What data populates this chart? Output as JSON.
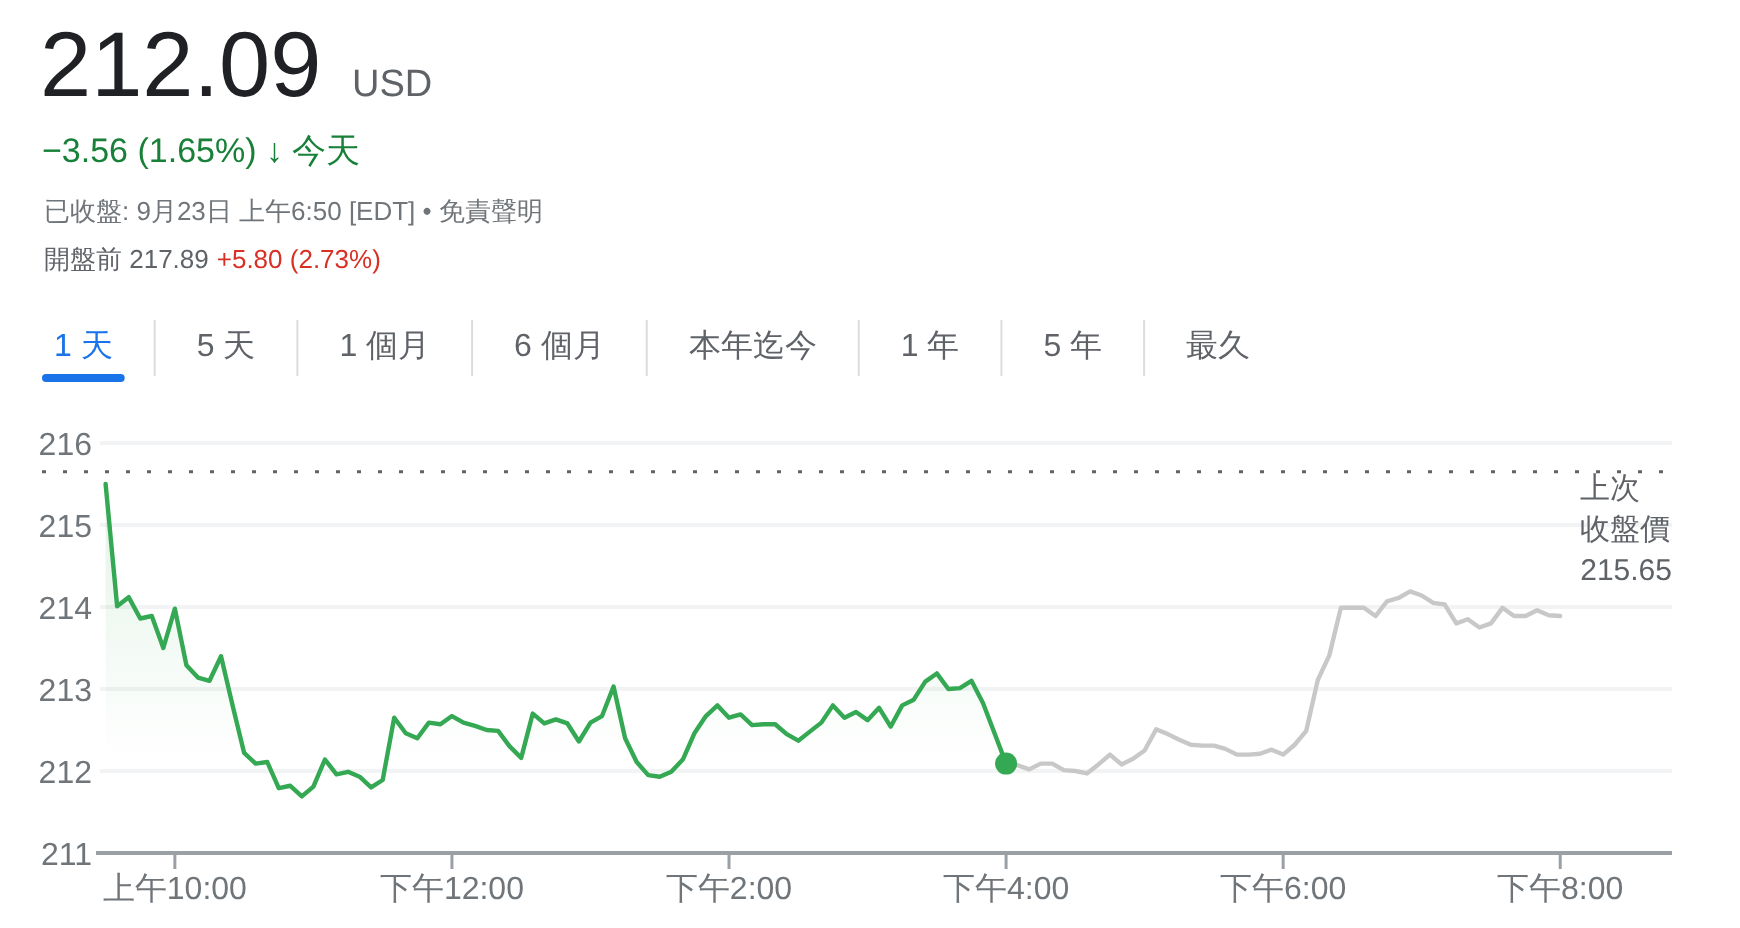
{
  "chart_data": {
    "type": "line",
    "title": "212.09 USD",
    "subtitle": "−3.56 (1.65%) ↓ 今天",
    "annotations": [
      "已收盤: 9月23日 上午6:50 [EDT] • 免責聲明",
      "開盤前 217.89",
      "+5.80 (2.73%)",
      "1 天",
      "5 天",
      "1 個月",
      "6 個月",
      "本年迄今",
      "1 年",
      "5 年",
      "最久"
    ],
    "categories": [
      null,
      null,
      null,
      null,
      null,
      null,
      "上午10:00",
      null,
      null,
      null,
      null,
      null,
      null,
      null,
      null,
      null,
      null,
      null,
      null,
      null,
      null,
      null,
      null,
      null,
      null,
      null,
      null,
      null,
      null,
      null,
      "下午12:00",
      null,
      null,
      null,
      null,
      null,
      null,
      null,
      null,
      null,
      null,
      null,
      null,
      null,
      null,
      null,
      null,
      null,
      null,
      null,
      null,
      null,
      null,
      null,
      "下午2:00",
      null,
      null,
      null,
      null,
      null,
      null,
      null,
      null,
      null,
      null,
      null,
      null,
      null,
      null,
      null,
      null,
      null,
      null,
      null,
      null,
      null,
      null,
      null,
      "下午4:00",
      null,
      null,
      null,
      null,
      null,
      null,
      null,
      null,
      null,
      null,
      null,
      null,
      null,
      null,
      null,
      null,
      null,
      null,
      null,
      null,
      null,
      null,
      null,
      "下午6:00",
      null,
      null,
      null,
      null,
      null,
      null,
      null,
      null,
      null,
      null,
      null,
      null,
      null,
      null,
      null,
      null,
      null,
      null,
      null,
      null,
      null,
      null,
      null,
      "下午8:00"
    ],
    "ylim": [
      211,
      216
    ],
    "yticks": [
      211,
      212,
      213,
      214,
      215,
      216
    ],
    "grid": "y",
    "ref_lines": [
      {
        "axis": "y",
        "value": 215.65,
        "label": "上次收盤價 215.65",
        "color": "#5f6368",
        "line_style": "dotted"
      }
    ],
    "series": [
      {
        "type": "area",
        "color": "#34a853",
        "values": [
          215.5,
          214.01,
          214.12,
          213.86,
          213.89,
          213.5,
          213.98,
          213.29,
          213.14,
          213.1,
          213.4,
          212.8,
          212.22,
          212.09,
          212.11,
          211.79,
          211.82,
          211.69,
          211.81,
          212.14,
          211.96,
          211.99,
          211.93,
          211.8,
          211.89,
          212.65,
          212.46,
          212.4,
          212.59,
          212.57,
          212.67,
          212.59,
          212.55,
          212.5,
          212.49,
          212.3,
          212.16,
          212.7,
          212.58,
          212.63,
          212.58,
          212.36,
          212.59,
          212.67,
          213.03,
          212.4,
          212.11,
          211.95,
          211.93,
          211.99,
          212.14,
          212.46,
          212.67,
          212.8,
          212.65,
          212.69,
          212.56,
          212.57,
          212.57,
          212.45,
          212.37,
          212.48,
          212.59,
          212.8,
          212.65,
          212.72,
          212.62,
          212.77,
          212.54,
          212.8,
          212.87,
          213.09,
          213.19,
          213,
          213.01,
          213.1,
          212.83,
          212.46,
          212.09,
          null,
          null,
          null,
          null,
          null,
          null,
          null,
          null,
          null,
          null,
          null,
          null,
          null,
          null,
          null,
          null,
          null,
          null,
          null,
          null,
          null,
          null,
          null,
          null,
          null,
          null,
          null,
          null,
          null,
          null,
          null,
          null,
          null,
          null,
          null,
          null,
          null,
          null,
          null,
          null,
          null,
          null,
          null,
          null,
          null,
          null,
          null,
          null
        ]
      },
      {
        "color": "#c8c8c8",
        "values": [
          null,
          null,
          null,
          null,
          null,
          null,
          null,
          null,
          null,
          null,
          null,
          null,
          null,
          null,
          null,
          null,
          null,
          null,
          null,
          null,
          null,
          null,
          null,
          null,
          null,
          null,
          null,
          null,
          null,
          null,
          null,
          null,
          null,
          null,
          null,
          null,
          null,
          null,
          null,
          null,
          null,
          null,
          null,
          null,
          null,
          null,
          null,
          null,
          null,
          null,
          null,
          null,
          null,
          null,
          null,
          null,
          null,
          null,
          null,
          null,
          null,
          null,
          null,
          null,
          null,
          null,
          null,
          null,
          null,
          null,
          null,
          null,
          null,
          null,
          null,
          null,
          null,
          null,
          212.09,
          212.07,
          212.02,
          212.09,
          212.09,
          212.01,
          212,
          211.97,
          212.08,
          212.2,
          212.08,
          212.15,
          212.25,
          212.51,
          212.45,
          212.38,
          212.32,
          212.31,
          212.31,
          212.27,
          212.2,
          212.2,
          212.21,
          212.26,
          212.2,
          212.32,
          212.49,
          213.11,
          213.41,
          213.99,
          213.99,
          213.99,
          213.89,
          214.07,
          214.11,
          214.19,
          214.14,
          214.05,
          214.03,
          213.8,
          213.85,
          213.75,
          213.8,
          213.99,
          213.89,
          213.89,
          213.96,
          213.9,
          213.89
        ]
      },
      {
        "type": "scatter",
        "color": "#34a853",
        "marker": "circle",
        "values": [
          null,
          null,
          null,
          null,
          null,
          null,
          null,
          null,
          null,
          null,
          null,
          null,
          null,
          null,
          null,
          null,
          null,
          null,
          null,
          null,
          null,
          null,
          null,
          null,
          null,
          null,
          null,
          null,
          null,
          null,
          null,
          null,
          null,
          null,
          null,
          null,
          null,
          null,
          null,
          null,
          null,
          null,
          null,
          null,
          null,
          null,
          null,
          null,
          null,
          null,
          null,
          null,
          null,
          null,
          null,
          null,
          null,
          null,
          null,
          null,
          null,
          null,
          null,
          null,
          null,
          null,
          null,
          null,
          null,
          null,
          null,
          null,
          null,
          null,
          null,
          null,
          null,
          null,
          212.09,
          null,
          null,
          null,
          null,
          null,
          null,
          null,
          null,
          null,
          null,
          null,
          null,
          null,
          null,
          null,
          null,
          null,
          null,
          null,
          null,
          null,
          null,
          null,
          null,
          null,
          null,
          null,
          null,
          null,
          null,
          null,
          null,
          null,
          null,
          null,
          null,
          null,
          null,
          null,
          null,
          null,
          null,
          null,
          null,
          null,
          null,
          null,
          null
        ]
      }
    ]
  }
}
